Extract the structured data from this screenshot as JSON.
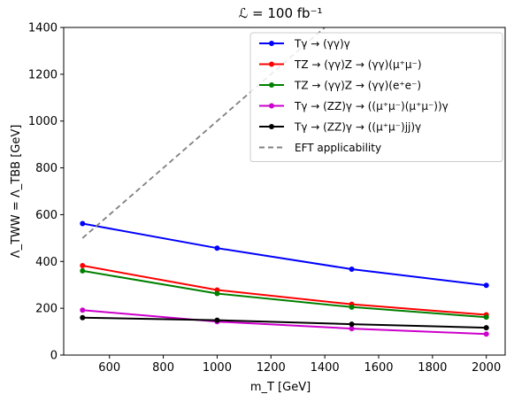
{
  "chart_data": {
    "type": "line",
    "title": "ℒ = 100 fb⁻¹",
    "xlabel": "m_T [GeV]",
    "ylabel": "Λ_TWW = Λ_TBB [GeV]",
    "xlim": [
      430,
      2070
    ],
    "ylim": [
      0,
      1400
    ],
    "xticks": [
      600,
      800,
      1000,
      1200,
      1400,
      1600,
      1800,
      2000
    ],
    "yticks": [
      0,
      200,
      400,
      600,
      800,
      1000,
      1200,
      1400
    ],
    "grid": false,
    "legend_position": "top-right",
    "series": [
      {
        "name": "Tγ → (γγ)γ",
        "color": "#0000ff",
        "style": "solid-marker",
        "x": [
          500,
          1000,
          1500,
          2000
        ],
        "y": [
          562,
          457,
          367,
          298
        ]
      },
      {
        "name": "TZ → (γγ)Z → (γγ)(μ⁺μ⁻)",
        "color": "#ff0000",
        "style": "solid-marker",
        "x": [
          500,
          1000,
          1500,
          2000
        ],
        "y": [
          382,
          278,
          217,
          172
        ]
      },
      {
        "name": "TZ → (γγ)Z → (γγ)(e⁺e⁻)",
        "color": "#008000",
        "style": "solid-marker",
        "x": [
          500,
          1000,
          1500,
          2000
        ],
        "y": [
          360,
          263,
          205,
          162
        ]
      },
      {
        "name": "Tγ → (ZZ)γ → ((μ⁺μ⁻)(μ⁺μ⁻))γ",
        "color": "#cc00cc",
        "style": "solid-marker",
        "x": [
          500,
          1000,
          1500,
          2000
        ],
        "y": [
          192,
          143,
          113,
          90
        ]
      },
      {
        "name": "Tγ → (ZZ)γ → ((μ⁺μ⁻)jj)γ",
        "color": "#000000",
        "style": "solid-marker",
        "x": [
          500,
          1000,
          1500,
          2000
        ],
        "y": [
          160,
          149,
          132,
          117
        ]
      },
      {
        "name": "EFT applicability",
        "color": "#808080",
        "style": "dashed",
        "x": [
          500,
          1400
        ],
        "y": [
          500,
          1400
        ]
      }
    ]
  }
}
